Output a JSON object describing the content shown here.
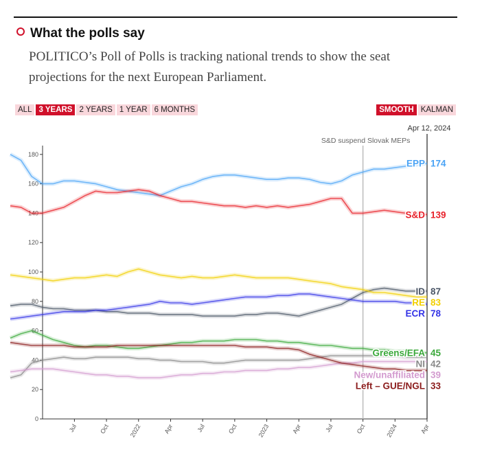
{
  "header": {
    "title": "What the polls say",
    "description": "POLITICO’s Poll of Polls is tracking national trends to show the seat projections for the next European Parliament."
  },
  "controls": {
    "ranges": [
      "ALL",
      "3 YEARS",
      "2 YEARS",
      "1 YEAR",
      "6 MONTHS"
    ],
    "active_range": "3 YEARS",
    "modes": [
      "SMOOTH",
      "KALMAN"
    ],
    "active_mode": "SMOOTH"
  },
  "chart_data": {
    "type": "line",
    "x": [
      "2021-01",
      "2021-02",
      "2021-03",
      "2021-04",
      "2021-05",
      "2021-06",
      "2021-07",
      "2021-08",
      "2021-09",
      "2021-10",
      "2021-11",
      "2021-12",
      "2022-01",
      "2022-02",
      "2022-03",
      "2022-04",
      "2022-05",
      "2022-06",
      "2022-07",
      "2022-08",
      "2022-09",
      "2022-10",
      "2022-11",
      "2022-12",
      "2023-01",
      "2023-02",
      "2023-03",
      "2023-04",
      "2023-05",
      "2023-06",
      "2023-07",
      "2023-08",
      "2023-09",
      "2023-10",
      "2023-11",
      "2023-12",
      "2024-01",
      "2024-02",
      "2024-03",
      "2024-04"
    ],
    "xlim": [
      "2021-01",
      "2024-04"
    ],
    "xticks": [
      {
        "value": "2021-07",
        "label": "Jul"
      },
      {
        "value": "2021-10",
        "label": "Oct"
      },
      {
        "value": "2022-01",
        "label": "2022"
      },
      {
        "value": "2022-04",
        "label": "Apr"
      },
      {
        "value": "2022-07",
        "label": "Jul"
      },
      {
        "value": "2022-10",
        "label": "Oct"
      },
      {
        "value": "2023-01",
        "label": "2023"
      },
      {
        "value": "2023-04",
        "label": "Apr"
      },
      {
        "value": "2023-07",
        "label": "Jul"
      },
      {
        "value": "2023-10",
        "label": "Oct"
      },
      {
        "value": "2024-01",
        "label": "2024"
      },
      {
        "value": "2024-04",
        "label": "Apr"
      }
    ],
    "ylim": [
      0,
      186
    ],
    "yticks": [
      0,
      20,
      40,
      60,
      80,
      100,
      120,
      140,
      160,
      180
    ],
    "current_date_label": "Apr 12, 2024",
    "annotations": [
      {
        "x": "2023-10",
        "text": "S&D suspend Slovak MEPs"
      }
    ],
    "series": [
      {
        "name": "EPP",
        "color": "#4aa3f5",
        "values": [
          180,
          176,
          165,
          160,
          160,
          162,
          162,
          161,
          160,
          158,
          156,
          155,
          154,
          153,
          152,
          155,
          158,
          160,
          163,
          165,
          166,
          166,
          165,
          164,
          163,
          163,
          164,
          164,
          163,
          161,
          160,
          162,
          166,
          168,
          170,
          170,
          171,
          172,
          173,
          174
        ]
      },
      {
        "name": "S&D",
        "color": "#e8212a",
        "values": [
          145,
          144,
          140,
          140,
          142,
          144,
          148,
          152,
          155,
          154,
          154,
          155,
          156,
          155,
          152,
          150,
          148,
          148,
          147,
          146,
          145,
          145,
          144,
          145,
          144,
          145,
          144,
          145,
          146,
          148,
          150,
          150,
          140,
          140,
          141,
          142,
          141,
          140,
          140,
          139
        ]
      },
      {
        "name": "ID",
        "color": "#4a5566",
        "values": [
          77,
          78,
          78,
          76,
          75,
          75,
          74,
          74,
          74,
          73,
          73,
          72,
          72,
          72,
          71,
          71,
          71,
          71,
          70,
          70,
          70,
          70,
          71,
          71,
          72,
          72,
          71,
          70,
          72,
          74,
          76,
          78,
          82,
          86,
          88,
          89,
          88,
          87,
          87,
          87
        ]
      },
      {
        "name": "RE",
        "color": "#f2cf00",
        "values": [
          98,
          97,
          96,
          95,
          94,
          95,
          96,
          96,
          97,
          98,
          97,
          100,
          102,
          100,
          98,
          97,
          96,
          97,
          96,
          96,
          97,
          98,
          97,
          96,
          96,
          96,
          96,
          95,
          94,
          93,
          92,
          90,
          89,
          88,
          86,
          86,
          85,
          84,
          83,
          83
        ]
      },
      {
        "name": "ECR",
        "color": "#3434e6",
        "values": [
          68,
          69,
          70,
          71,
          72,
          73,
          73,
          73,
          74,
          74,
          75,
          76,
          77,
          78,
          80,
          79,
          79,
          78,
          79,
          80,
          81,
          82,
          83,
          83,
          83,
          84,
          84,
          85,
          85,
          84,
          83,
          82,
          81,
          80,
          80,
          80,
          80,
          79,
          79,
          78
        ]
      },
      {
        "name": "Greens/EFA",
        "color": "#3aa83a",
        "values": [
          55,
          58,
          60,
          57,
          54,
          52,
          50,
          49,
          50,
          50,
          49,
          48,
          48,
          49,
          50,
          51,
          52,
          52,
          53,
          53,
          53,
          54,
          54,
          54,
          53,
          53,
          52,
          52,
          51,
          50,
          50,
          49,
          48,
          48,
          47,
          47,
          46,
          46,
          45,
          45
        ]
      },
      {
        "name": "NI",
        "color": "#8a8a8a",
        "values": [
          28,
          30,
          38,
          40,
          41,
          42,
          41,
          41,
          42,
          42,
          42,
          42,
          41,
          41,
          40,
          40,
          39,
          39,
          39,
          38,
          38,
          39,
          40,
          40,
          40,
          40,
          40,
          40,
          41,
          42,
          43,
          43,
          43,
          43,
          43,
          43,
          43,
          42,
          42,
          42
        ]
      },
      {
        "name": "New/unaffiliated",
        "color": "#d39bcf",
        "values": [
          32,
          33,
          34,
          34,
          34,
          33,
          32,
          31,
          30,
          30,
          29,
          29,
          28,
          28,
          28,
          29,
          30,
          30,
          31,
          31,
          32,
          32,
          33,
          33,
          33,
          34,
          34,
          35,
          35,
          36,
          37,
          38,
          38,
          39,
          39,
          39,
          39,
          39,
          39,
          39
        ]
      },
      {
        "name": "Left – GUE/NGL",
        "color": "#8b1c1c",
        "values": [
          52,
          51,
          50,
          50,
          50,
          50,
          49,
          49,
          49,
          49,
          50,
          50,
          50,
          50,
          50,
          50,
          50,
          50,
          50,
          50,
          50,
          50,
          49,
          49,
          49,
          48,
          48,
          47,
          44,
          42,
          40,
          38,
          37,
          36,
          35,
          34,
          34,
          33,
          33,
          33
        ]
      }
    ]
  }
}
